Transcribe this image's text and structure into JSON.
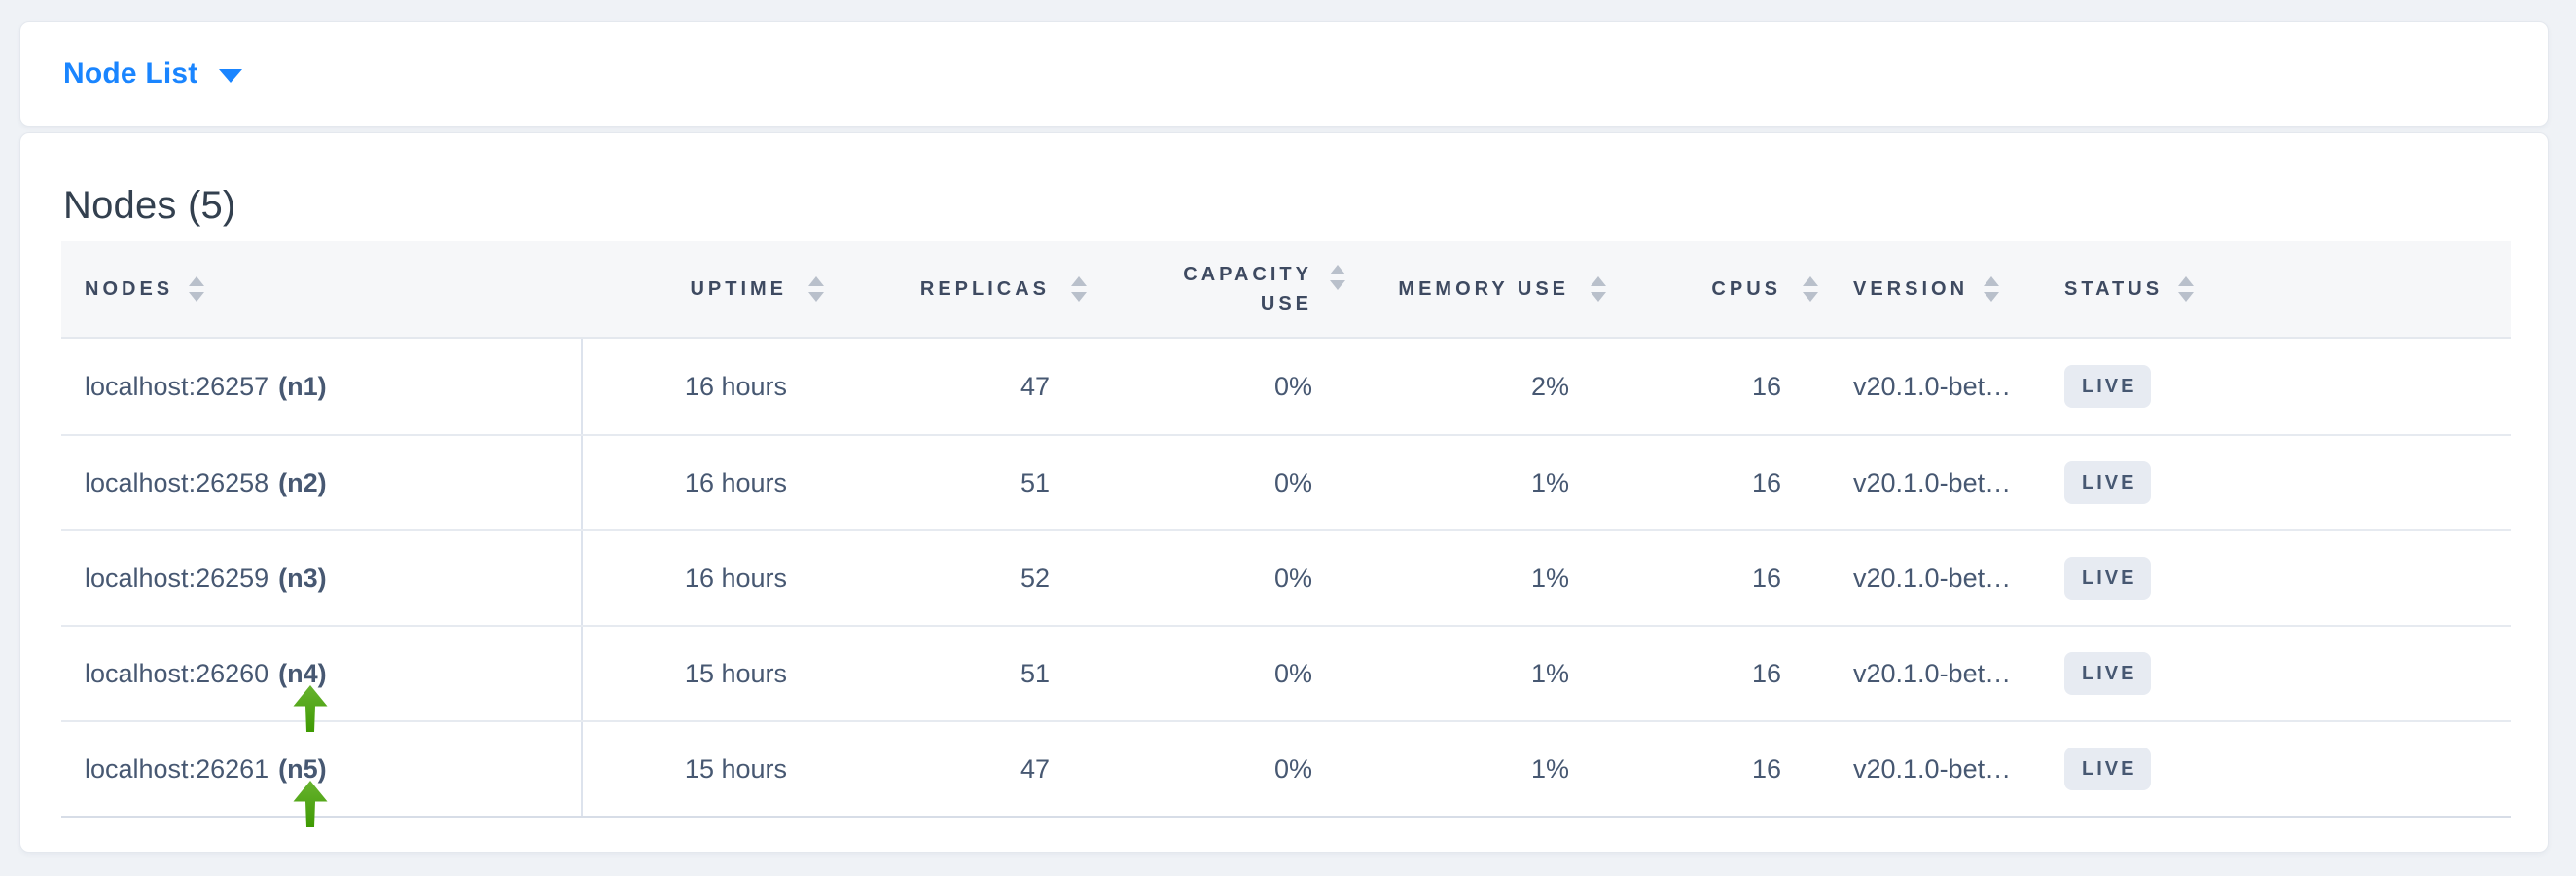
{
  "topbar": {
    "dropdown_label": "Node List",
    "dropdown_icon": "caret-down-icon"
  },
  "main": {
    "title": "Nodes (5)",
    "table": {
      "columns": [
        {
          "key": "nodes",
          "label": "NODES",
          "align": "left",
          "sortable": true
        },
        {
          "key": "uptime",
          "label": "UPTIME",
          "align": "right",
          "sortable": true
        },
        {
          "key": "replicas",
          "label": "REPLICAS",
          "align": "right",
          "sortable": true
        },
        {
          "key": "capacity_use",
          "label": "CAPACITY USE",
          "align": "right",
          "sortable": true
        },
        {
          "key": "memory_use",
          "label": "MEMORY USE",
          "align": "right",
          "sortable": true
        },
        {
          "key": "cpus",
          "label": "CPUS",
          "align": "right",
          "sortable": true
        },
        {
          "key": "version",
          "label": "VERSION",
          "align": "left",
          "sortable": true
        },
        {
          "key": "status",
          "label": "STATUS",
          "align": "left",
          "sortable": true
        }
      ],
      "rows": [
        {
          "address": "localhost:26257",
          "node_id": "(n1)",
          "uptime": "16 hours",
          "replicas": "47",
          "capacity_use": "0%",
          "memory_use": "2%",
          "cpus": "16",
          "version": "v20.1.0-bet…",
          "status": "LIVE",
          "annotated": false
        },
        {
          "address": "localhost:26258",
          "node_id": "(n2)",
          "uptime": "16 hours",
          "replicas": "51",
          "capacity_use": "0%",
          "memory_use": "1%",
          "cpus": "16",
          "version": "v20.1.0-bet…",
          "status": "LIVE",
          "annotated": false
        },
        {
          "address": "localhost:26259",
          "node_id": "(n3)",
          "uptime": "16 hours",
          "replicas": "52",
          "capacity_use": "0%",
          "memory_use": "1%",
          "cpus": "16",
          "version": "v20.1.0-bet…",
          "status": "LIVE",
          "annotated": false
        },
        {
          "address": "localhost:26260",
          "node_id": "(n4)",
          "uptime": "15 hours",
          "replicas": "51",
          "capacity_use": "0%",
          "memory_use": "1%",
          "cpus": "16",
          "version": "v20.1.0-bet…",
          "status": "LIVE",
          "annotated": true
        },
        {
          "address": "localhost:26261",
          "node_id": "(n5)",
          "uptime": "15 hours",
          "replicas": "47",
          "capacity_use": "0%",
          "memory_use": "1%",
          "cpus": "16",
          "version": "v20.1.0-bet…",
          "status": "LIVE",
          "annotated": true
        }
      ]
    },
    "annotation": {
      "icon": "green-up-arrow-icon"
    }
  },
  "colors": {
    "accent_blue": "#1a85ff",
    "title_text": "#33404f",
    "header_text": "#3e4a61",
    "cell_text": "#475872",
    "badge_bg": "#e7ebf2",
    "arrow_green_top": "#68b32f",
    "arrow_green_bottom": "#3e9a02",
    "page_bg": "#eff2f6"
  }
}
